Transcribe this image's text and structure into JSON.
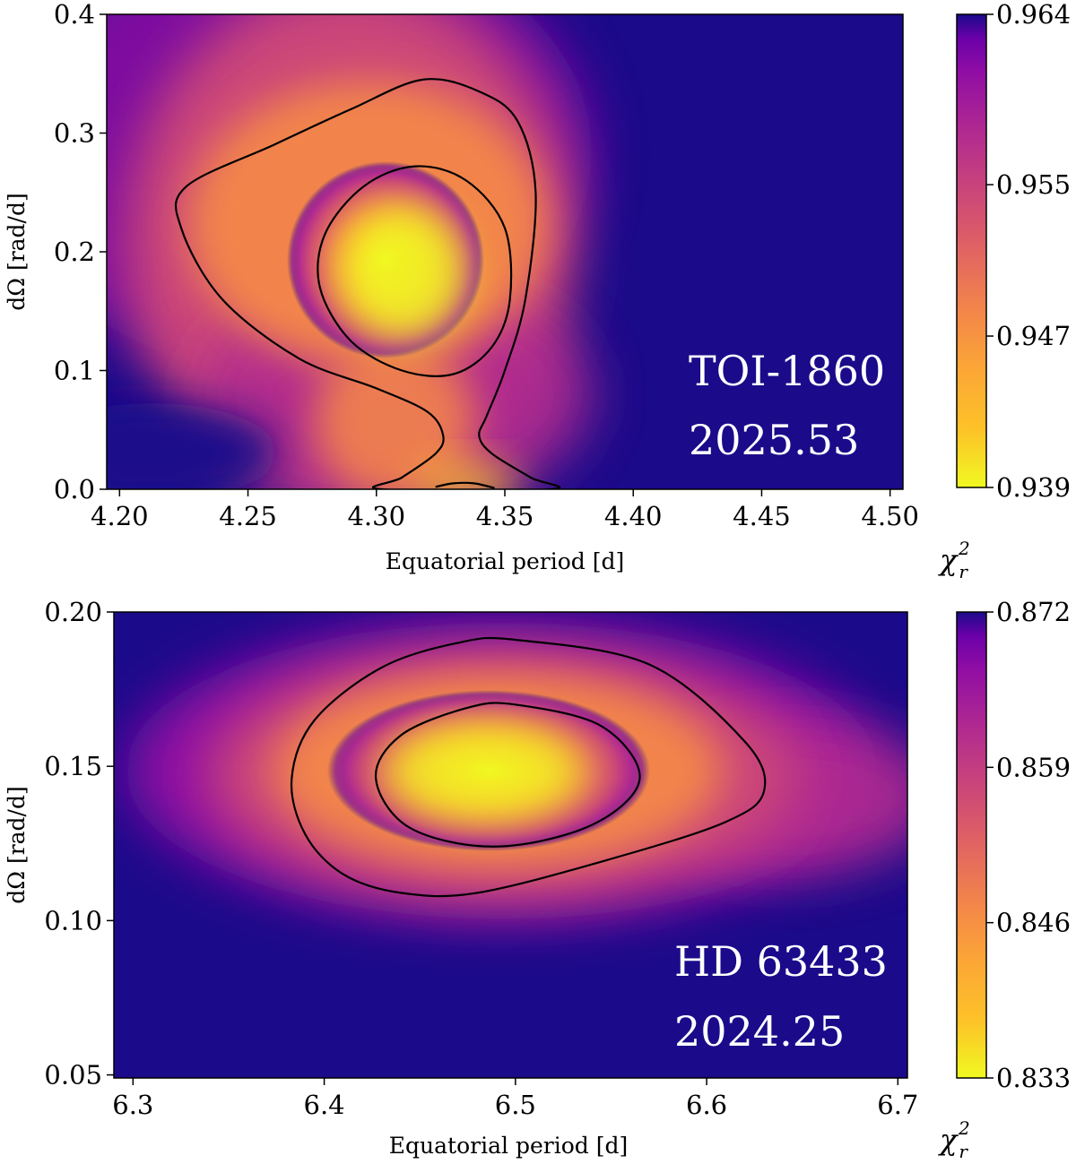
{
  "chart_data": [
    {
      "type": "heatmap",
      "title": "",
      "xlabel": "Equatorial period [d]",
      "ylabel": "dΩ [rad/d]",
      "xlim": [
        4.195,
        4.505
      ],
      "ylim": [
        0.0,
        0.4
      ],
      "xticks": [
        4.2,
        4.25,
        4.3,
        4.35,
        4.4,
        4.45,
        4.5
      ],
      "xtick_labels": [
        "4.20",
        "4.25",
        "4.30",
        "4.35",
        "4.40",
        "4.45",
        "4.50"
      ],
      "yticks": [
        0.0,
        0.1,
        0.2,
        0.3,
        0.4
      ],
      "ytick_labels": [
        "0.0",
        "0.1",
        "0.2",
        "0.3",
        "0.4"
      ],
      "annotation": [
        "TOI-1860",
        "2025.53"
      ],
      "colorbar": {
        "label": "χ_r^2",
        "label_main": "χ",
        "label_sub": "r",
        "label_sup": "2",
        "range": [
          0.939,
          0.964
        ],
        "ticks": [
          0.964,
          0.955,
          0.947,
          0.939
        ],
        "tick_labels": [
          "0.964",
          "0.955",
          "0.947",
          "0.939"
        ],
        "colormap": "plasma_r"
      },
      "minimum": {
        "period": 4.315,
        "dOmega": 0.19,
        "chi2": 0.939
      },
      "contours": [
        {
          "name": "inner",
          "points": [
            [
              4.315,
              0.272
            ],
            [
              4.335,
              0.26
            ],
            [
              4.35,
              0.22
            ],
            [
              4.352,
              0.16
            ],
            [
              4.345,
              0.12
            ],
            [
              4.33,
              0.097
            ],
            [
              4.31,
              0.1
            ],
            [
              4.29,
              0.125
            ],
            [
              4.278,
              0.17
            ],
            [
              4.28,
              0.215
            ],
            [
              4.295,
              0.255
            ]
          ]
        },
        {
          "name": "outer",
          "points": [
            [
              4.318,
              0.345
            ],
            [
              4.34,
              0.335
            ],
            [
              4.355,
              0.31
            ],
            [
              4.362,
              0.25
            ],
            [
              4.358,
              0.16
            ],
            [
              4.35,
              0.1
            ],
            [
              4.343,
              0.062
            ],
            [
              4.34,
              0.045
            ],
            [
              4.345,
              0.03
            ],
            [
              4.36,
              0.01
            ],
            [
              4.368,
              0.0
            ],
            [
              4.302,
              0.0
            ],
            [
              4.31,
              0.01
            ],
            [
              4.323,
              0.03
            ],
            [
              4.326,
              0.045
            ],
            [
              4.32,
              0.065
            ],
            [
              4.3,
              0.085
            ],
            [
              4.27,
              0.11
            ],
            [
              4.24,
              0.16
            ],
            [
              4.224,
              0.22
            ],
            [
              4.226,
              0.255
            ],
            [
              4.26,
              0.29
            ],
            [
              4.29,
              0.32
            ]
          ]
        },
        {
          "name": "bottom-arc",
          "points": [
            [
              4.323,
              0.002
            ],
            [
              4.33,
              0.005
            ],
            [
              4.338,
              0.005
            ],
            [
              4.346,
              0.001
            ]
          ]
        }
      ]
    },
    {
      "type": "heatmap",
      "title": "",
      "xlabel": "Equatorial period [d]",
      "ylabel": "dΩ [rad/d]",
      "xlim": [
        6.29,
        6.705
      ],
      "ylim": [
        0.049,
        0.2
      ],
      "xticks": [
        6.3,
        6.4,
        6.5,
        6.6,
        6.7
      ],
      "xtick_labels": [
        "6.3",
        "6.4",
        "6.5",
        "6.6",
        "6.7"
      ],
      "yticks": [
        0.05,
        0.1,
        0.15,
        0.2
      ],
      "ytick_labels": [
        "0.05",
        "0.10",
        "0.15",
        "0.20"
      ],
      "annotation": [
        "HD 63433",
        "2024.25"
      ],
      "colorbar": {
        "label": "χ_r^2",
        "label_main": "χ",
        "label_sub": "r",
        "label_sup": "2",
        "range": [
          0.833,
          0.872
        ],
        "ticks": [
          0.872,
          0.859,
          0.846,
          0.833
        ],
        "tick_labels": [
          "0.872",
          "0.859",
          "0.846",
          "0.833"
        ],
        "colormap": "plasma_r"
      },
      "minimum": {
        "period": 6.49,
        "dOmega": 0.146,
        "chi2": 0.833
      },
      "contours": [
        {
          "name": "inner",
          "points": [
            [
              6.5,
              0.17
            ],
            [
              6.545,
              0.163
            ],
            [
              6.565,
              0.146
            ],
            [
              6.54,
              0.131
            ],
            [
              6.49,
              0.124
            ],
            [
              6.445,
              0.13
            ],
            [
              6.427,
              0.146
            ],
            [
              6.44,
              0.16
            ],
            [
              6.475,
              0.169
            ]
          ]
        },
        {
          "name": "outer",
          "points": [
            [
              6.5,
              0.191
            ],
            [
              6.57,
              0.183
            ],
            [
              6.62,
              0.158
            ],
            [
              6.63,
              0.142
            ],
            [
              6.61,
              0.132
            ],
            [
              6.55,
              0.12
            ],
            [
              6.48,
              0.109
            ],
            [
              6.44,
              0.109
            ],
            [
              6.41,
              0.115
            ],
            [
              6.39,
              0.128
            ],
            [
              6.383,
              0.146
            ],
            [
              6.395,
              0.165
            ],
            [
              6.43,
              0.182
            ],
            [
              6.47,
              0.19
            ]
          ]
        }
      ]
    }
  ]
}
